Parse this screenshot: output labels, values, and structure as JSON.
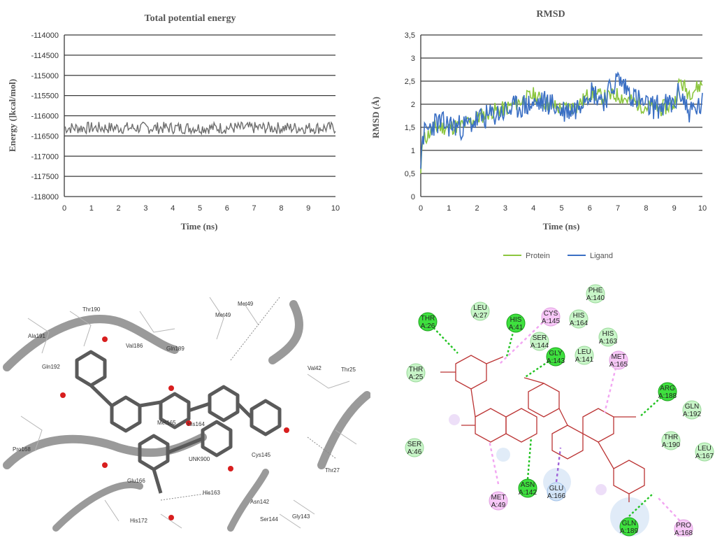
{
  "colors": {
    "energy_line": "#6e6e6e",
    "protein": "#8cc63f",
    "ligand": "#3a6fc4",
    "grid": "#3a3a3a",
    "hbond": "#22c322",
    "vdw": "#b8f0b8",
    "pi_alkyl": "#f2a6f2",
    "pi_sigma": "#a064d8",
    "unfav": "#bcd4f0"
  },
  "chart_data": [
    {
      "type": "line",
      "title": "Total potential energy",
      "xlabel": "Time (ns)",
      "ylabel": "Energy (]kcal/mol)",
      "xlim": [
        0,
        10
      ],
      "ylim": [
        -118000,
        -114000
      ],
      "xticks": [
        "0",
        "1",
        "2",
        "3",
        "4",
        "5",
        "6",
        "7",
        "8",
        "9",
        "10"
      ],
      "yticks": [
        "-114000",
        "-114500",
        "-115000",
        "-115500",
        "-116000",
        "-116500",
        "-117000",
        "-117500",
        "-118000"
      ],
      "grid": true,
      "series": [
        {
          "name": "",
          "mean": -116300,
          "amplitude": 150,
          "points": 260,
          "seed": 7
        }
      ]
    },
    {
      "type": "line",
      "title": "RMSD",
      "xlabel": "Time (ns)",
      "ylabel": "RMSD (Å)",
      "xlim": [
        0,
        10
      ],
      "ylim": [
        0,
        3.5
      ],
      "xticks": [
        "0",
        "1",
        "2",
        "3",
        "4",
        "5",
        "6",
        "7",
        "8",
        "9",
        "10"
      ],
      "yticks": [
        "3,5",
        "3",
        "2,5",
        "2",
        "1,5",
        "1",
        "0,5",
        "0"
      ],
      "grid": true,
      "legend": "bottom",
      "series": [
        {
          "name": "Protein",
          "x": [
            0,
            0.05,
            0.2,
            0.5,
            1,
            1.5,
            2,
            2.5,
            3,
            3.5,
            4,
            4.5,
            5,
            5.5,
            5.8,
            6,
            6.5,
            7,
            7.5,
            8,
            8.5,
            9,
            9.2,
            9.5,
            9.8,
            10
          ],
          "y": [
            0.5,
            1.2,
            1.3,
            1.5,
            1.5,
            1.55,
            1.7,
            1.85,
            1.9,
            2.05,
            2.2,
            2.0,
            1.9,
            1.95,
            2.1,
            2.25,
            2.15,
            2.2,
            2.05,
            1.95,
            1.9,
            2.0,
            2.5,
            2.25,
            2.35,
            2.45
          ]
        },
        {
          "name": "Ligand",
          "x": [
            0,
            0.05,
            0.2,
            0.5,
            1,
            1.5,
            2,
            2.5,
            3,
            3.5,
            4,
            4.5,
            5,
            5.5,
            5.8,
            6,
            6.5,
            7,
            7.5,
            8,
            8.5,
            9,
            9.2,
            9.5,
            9.8,
            10
          ],
          "y": [
            0.6,
            1.3,
            1.4,
            1.6,
            1.55,
            1.5,
            1.65,
            1.75,
            1.85,
            1.95,
            2.0,
            2.05,
            1.85,
            1.9,
            2.2,
            2.3,
            2.1,
            2.55,
            2.2,
            1.95,
            1.95,
            2.0,
            2.3,
            1.85,
            1.9,
            2.0
          ]
        }
      ]
    }
  ],
  "docking3d": {
    "residues": [
      "Thr190",
      "Ala191",
      "Gln189",
      "Val186",
      "Gln192",
      "Met49",
      "Met165",
      "His164",
      "Val42",
      "Thr25",
      "Cys145",
      "Pro168",
      "UNK900",
      "Glu166",
      "Met49",
      "Asn142",
      "Gly143",
      "His163",
      "Ser144",
      "His172",
      "Thr27"
    ]
  },
  "interactions2d": {
    "residues": [
      {
        "line1": "PHE",
        "line2": "A:140",
        "kind": "vdw"
      },
      {
        "line1": "LEU",
        "line2": "A:27",
        "kind": "vdw"
      },
      {
        "line1": "THR",
        "line2": "A:26",
        "kind": "hbond"
      },
      {
        "line1": "HIS",
        "line2": "A:41",
        "kind": "hbond"
      },
      {
        "line1": "CYS",
        "line2": "A:145",
        "kind": "pi_alkyl"
      },
      {
        "line1": "HIS",
        "line2": "A:164",
        "kind": "vdw"
      },
      {
        "line1": "HIS",
        "line2": "A:163",
        "kind": "vdw"
      },
      {
        "line1": "SER",
        "line2": "A:144",
        "kind": "vdw"
      },
      {
        "line1": "GLY",
        "line2": "A:143",
        "kind": "hbond"
      },
      {
        "line1": "LEU",
        "line2": "A:141",
        "kind": "vdw"
      },
      {
        "line1": "MET",
        "line2": "A:165",
        "kind": "pi_alkyl"
      },
      {
        "line1": "THR",
        "line2": "A:25",
        "kind": "vdw"
      },
      {
        "line1": "ARG",
        "line2": "A:188",
        "kind": "hbond"
      },
      {
        "line1": "GLN",
        "line2": "A:192",
        "kind": "vdw"
      },
      {
        "line1": "THR",
        "line2": "A:190",
        "kind": "vdw"
      },
      {
        "line1": "SER",
        "line2": "A:46",
        "kind": "vdw"
      },
      {
        "line1": "LEU",
        "line2": "A:167",
        "kind": "vdw"
      },
      {
        "line1": "ASN",
        "line2": "A:142",
        "kind": "hbond"
      },
      {
        "line1": "GLU",
        "line2": "A:166",
        "kind": "unfav"
      },
      {
        "line1": "MET",
        "line2": "A:49",
        "kind": "pi_alkyl"
      },
      {
        "line1": "GLN",
        "line2": "A:189",
        "kind": "hbond"
      },
      {
        "line1": "PRO",
        "line2": "A:168",
        "kind": "pi_alkyl"
      }
    ]
  }
}
